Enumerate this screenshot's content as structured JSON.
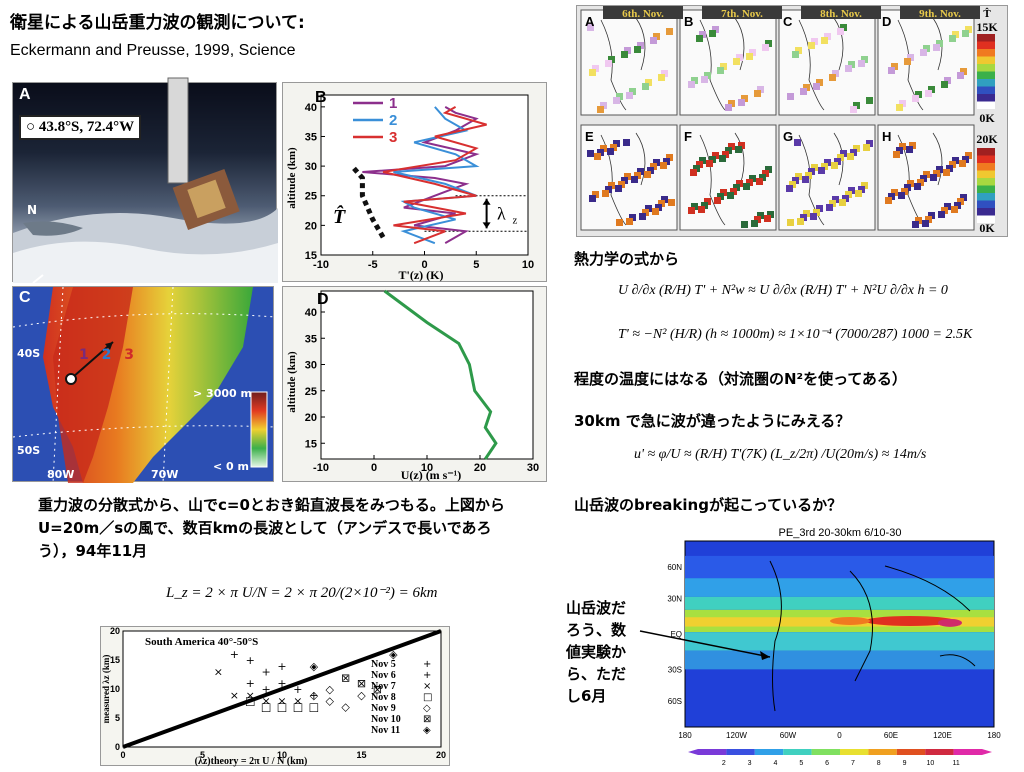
{
  "title": "衛星による山岳重力波の観測について:",
  "reference": "Eckermann and Preusse, 1999, Science",
  "panelA": {
    "label": "A",
    "location": "43.8°S, 72.4°W",
    "north": "N"
  },
  "panelB": {
    "label": "B",
    "ylabel": "altitude (km)",
    "xlabel": "T'(z) (K)",
    "yticks": [
      "40",
      "35",
      "30",
      "25",
      "20",
      "15"
    ],
    "xticks": [
      "-10",
      "-5",
      "0",
      "5",
      "10"
    ],
    "legend": [
      "1",
      "2",
      "3"
    ],
    "that": "T̂",
    "lambda": "λ",
    "lambda_sub": "z"
  },
  "panelC": {
    "label": "C",
    "lat1": "40S",
    "lat2": "50S",
    "lon1": "80W",
    "lon2": "70W",
    "cb_top": "> 3000 m",
    "cb_bottom": "< 0 m",
    "tracks": [
      "1",
      "2",
      "3"
    ]
  },
  "panelD": {
    "label": "D",
    "ylabel": "altitude (km)",
    "xlabel": "U(z)  (m s⁻¹)",
    "yticks": [
      "40",
      "35",
      "30",
      "25",
      "20",
      "15"
    ],
    "xticks": [
      "-10",
      "0",
      "10",
      "20",
      "30"
    ]
  },
  "satgrid": {
    "dates": [
      "6th. Nov.",
      "7th. Nov.",
      "8th. Nov.",
      "9th. Nov."
    ],
    "top_labels": [
      "A",
      "B",
      "C",
      "D"
    ],
    "bottom_labels": [
      "E",
      "F",
      "G",
      "H"
    ],
    "cb_top": {
      "symbol": "T̂",
      "max": "15K",
      "min": "0K"
    },
    "cb_bottom": {
      "max": "20K",
      "min": "0K"
    }
  },
  "right_text": {
    "thermo": "熱力学の式から",
    "eq1": "U ∂/∂x (R/H) T' + N²w ≈ U ∂/∂x (R/H) T' + N²U ∂/∂x h = 0",
    "eq2": "T' ≈ −N² (H/R) (h ≈ 1000m) ≈ 1×10⁻⁴ (7000/287) 1000 = 2.5K",
    "temp_note": "程度の温度にはなる（対流圏のN²を使ってある）",
    "at30km": "30km で急に波が違ったようにみえる？",
    "eq3": "u' ≈ φ/U ≈ (R/H) T'(7K) (L_z/2π) /U(20m/s) ≈ 14m/s",
    "breaking": "山岳波のbreakingが起こっているか？"
  },
  "paragraph": "重力波の分散式から、山でc=0とおき鉛直波長をみつもる。上図からU=20m／sの風で、数百kmの長波として（アンデスで長いであろう），94年11月",
  "eq4": "L_z = 2 × π U/N = 2 × π 20/(2×10⁻²) = 6km",
  "scatter": {
    "title": "South America 40°-50°S",
    "ylabel": "measured λz (km)",
    "xlabel": "(λz)theory = 2π U / N  (km)",
    "xticks": [
      "0",
      "5",
      "10",
      "15",
      "20"
    ],
    "yticks": [
      "0",
      "5",
      "10",
      "15",
      "20"
    ],
    "legend": [
      "Nov 5",
      "Nov 6",
      "Nov 7",
      "Nov 8",
      "Nov 9",
      "Nov 10",
      "Nov 11"
    ]
  },
  "chart_data": [
    {
      "type": "line",
      "title": "",
      "xlabel": "T'(z) (K)",
      "ylabel": "altitude (km)",
      "xlim": [
        -10,
        10
      ],
      "ylim": [
        15,
        42
      ],
      "series": [
        {
          "name": "1",
          "color": "#8c2f8c",
          "points": [
            [
              2,
              17
            ],
            [
              4,
              19
            ],
            [
              -1,
              20
            ],
            [
              3,
              22
            ],
            [
              -2,
              23
            ],
            [
              1,
              25
            ],
            [
              4,
              27
            ],
            [
              1,
              28
            ],
            [
              -6,
              29
            ],
            [
              2,
              30
            ],
            [
              5,
              32
            ],
            [
              0,
              34
            ],
            [
              3,
              36
            ],
            [
              5,
              38
            ],
            [
              3,
              39
            ],
            [
              2,
              40
            ]
          ]
        },
        {
          "name": "2",
          "color": "#3a8fd8",
          "points": [
            [
              1,
              17
            ],
            [
              -2,
              19
            ],
            [
              3,
              21
            ],
            [
              -1,
              23
            ],
            [
              -2,
              24
            ],
            [
              5,
              25
            ],
            [
              2,
              27
            ],
            [
              -3,
              29
            ],
            [
              5,
              30
            ],
            [
              3,
              32
            ],
            [
              -1,
              34
            ],
            [
              4,
              36
            ],
            [
              2,
              38
            ],
            [
              1,
              40
            ]
          ]
        },
        {
          "name": "3",
          "color": "#d83030",
          "points": [
            [
              -1,
              17
            ],
            [
              2,
              19
            ],
            [
              -3,
              20
            ],
            [
              4,
              22
            ],
            [
              -2,
              24
            ],
            [
              5,
              25
            ],
            [
              1,
              27
            ],
            [
              -4,
              29
            ],
            [
              3,
              31
            ],
            [
              5,
              33
            ],
            [
              1,
              35
            ],
            [
              6,
              37
            ],
            [
              2,
              39
            ],
            [
              3,
              40
            ]
          ]
        },
        {
          "name": "T̂",
          "color": "#111111",
          "points": [
            [
              -4,
              18
            ],
            [
              -5,
              21
            ],
            [
              -6,
              25
            ],
            [
              -6,
              28
            ],
            [
              -7,
              30
            ]
          ]
        }
      ]
    },
    {
      "type": "line",
      "title": "",
      "xlabel": "U(z)  (m s⁻¹)",
      "ylabel": "altitude (km)",
      "xlim": [
        -10,
        30
      ],
      "ylim": [
        12,
        44
      ],
      "series": [
        {
          "name": "",
          "color": "#2e9a4a",
          "points": [
            [
              21,
              12
            ],
            [
              23,
              15
            ],
            [
              21,
              18
            ],
            [
              22,
              21
            ],
            [
              19,
              25
            ],
            [
              18,
              30
            ],
            [
              16,
              34
            ],
            [
              10,
              38
            ],
            [
              2,
              44
            ]
          ]
        }
      ]
    },
    {
      "type": "scatter",
      "title": "South America 40°-50°S",
      "xlabel": "(λz)theory = 2π U / N  (km)",
      "ylabel": "measured λz (km)",
      "xlim": [
        0,
        20
      ],
      "ylim": [
        0,
        20
      ],
      "series": [
        {
          "name": "Nov 5",
          "points": [
            [
              7,
              16
            ],
            [
              8,
              15
            ],
            [
              10,
              14
            ],
            [
              9,
              13
            ]
          ]
        },
        {
          "name": "Nov 6",
          "points": [
            [
              8,
              11
            ],
            [
              9,
              10
            ],
            [
              10,
              11
            ],
            [
              11,
              10
            ],
            [
              12,
              9
            ]
          ]
        },
        {
          "name": "Nov 7",
          "points": [
            [
              7,
              9
            ],
            [
              8,
              9
            ],
            [
              9,
              8
            ],
            [
              10,
              8
            ],
            [
              11,
              8
            ],
            [
              6,
              13
            ]
          ]
        },
        {
          "name": "Nov 8",
          "points": [
            [
              8,
              8
            ],
            [
              9,
              7
            ],
            [
              10,
              7
            ],
            [
              11,
              7
            ],
            [
              12,
              7
            ]
          ]
        },
        {
          "name": "Nov 9",
          "points": [
            [
              12,
              9
            ],
            [
              13,
              8
            ],
            [
              14,
              7
            ],
            [
              13,
              10
            ],
            [
              15,
              9
            ]
          ]
        },
        {
          "name": "Nov 10",
          "points": [
            [
              14,
              12
            ],
            [
              15,
              11
            ],
            [
              16,
              10
            ]
          ]
        },
        {
          "name": "Nov 11",
          "points": [
            [
              17,
              16
            ],
            [
              12,
              14
            ]
          ]
        }
      ]
    }
  ],
  "worldmap": {
    "title": "PE_3rd 20-30km 6/10-30",
    "lat_labels": [
      "60N",
      "30N",
      "EQ",
      "30S",
      "60S"
    ],
    "lon_labels": [
      "180",
      "120W",
      "60W",
      "0",
      "60E",
      "120E",
      "180"
    ],
    "cb_labels": [
      "2",
      "3",
      "4",
      "5",
      "6",
      "7",
      "8",
      "9",
      "10",
      "11"
    ]
  },
  "sidenote": "山岳波だろう、数値実験から、ただし6月"
}
